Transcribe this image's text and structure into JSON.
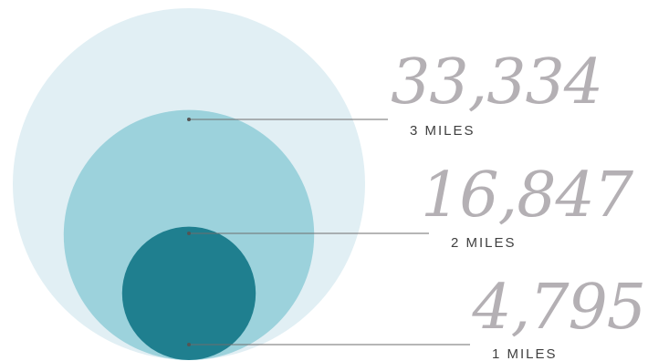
{
  "chart_data": {
    "type": "bubble",
    "title": "",
    "series": [
      {
        "label": "3 MILES",
        "radius_miles": 3,
        "value": 33334,
        "value_text": "33,334",
        "color": "#e1eff4"
      },
      {
        "label": "2 MILES",
        "radius_miles": 2,
        "value": 16847,
        "value_text": "16,847",
        "color": "#9cd2dc"
      },
      {
        "label": "1 MILES",
        "radius_miles": 1,
        "value": 4795,
        "value_text": "4,795",
        "color": "#1f7f8f"
      }
    ]
  }
}
